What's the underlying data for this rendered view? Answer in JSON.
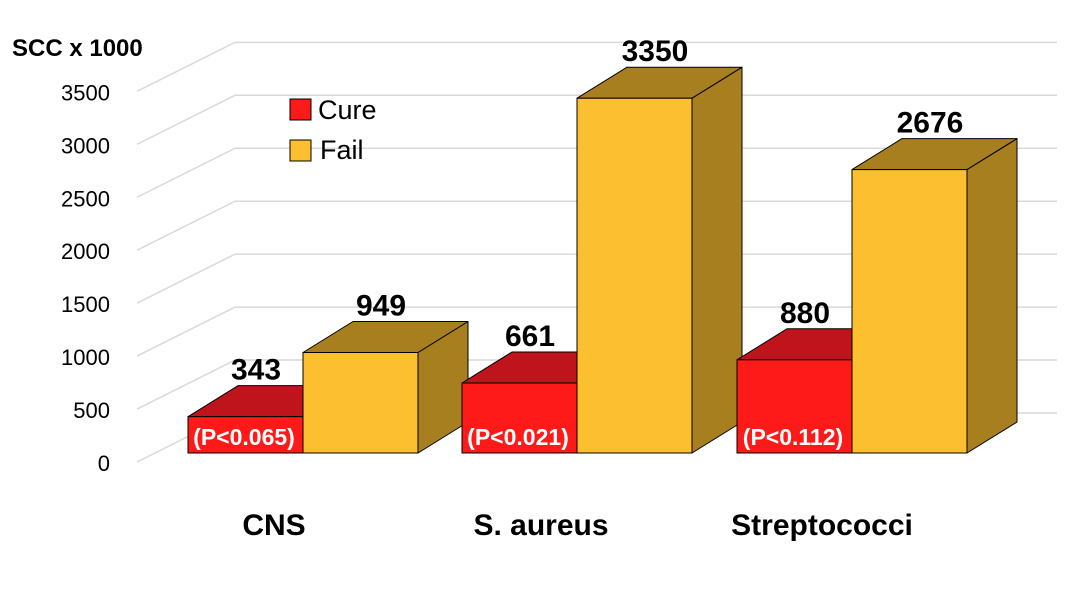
{
  "chart_data": {
    "type": "bar",
    "style": "3d-clustered-column",
    "ylabel": "SCC x 1000",
    "ylim": [
      0,
      3500
    ],
    "ytick_step": 500,
    "yticks": [
      "0",
      "500",
      "1000",
      "1500",
      "2000",
      "2500",
      "3000",
      "3500"
    ],
    "grid": true,
    "legend_position": "top-left",
    "categories": [
      "CNS",
      "S. aureus",
      "Streptococci"
    ],
    "series": [
      {
        "name": "Cure",
        "values": [
          343,
          661,
          880
        ],
        "color": "#ff1a1a",
        "dark": "#c0141c"
      },
      {
        "name": "Fail",
        "values": [
          949,
          3350,
          2676
        ],
        "color": "#fbbf30",
        "dark": "#a87f1f"
      }
    ],
    "value_labels": [
      [
        "343",
        "661",
        "880"
      ],
      [
        "949",
        "3350",
        "2676"
      ]
    ],
    "annotations": [
      "(P<0.065)",
      "(P<0.021)",
      "(P<0.112)"
    ]
  }
}
